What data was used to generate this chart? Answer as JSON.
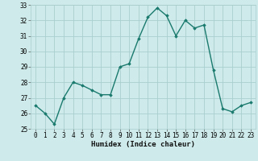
{
  "x": [
    0,
    1,
    2,
    3,
    4,
    5,
    6,
    7,
    8,
    9,
    10,
    11,
    12,
    13,
    14,
    15,
    16,
    17,
    18,
    19,
    20,
    21,
    22,
    23
  ],
  "y": [
    26.5,
    26.0,
    25.3,
    27.0,
    28.0,
    27.8,
    27.5,
    27.2,
    27.2,
    29.0,
    29.2,
    30.8,
    32.2,
    32.8,
    32.3,
    31.0,
    32.0,
    31.5,
    31.7,
    28.8,
    26.3,
    26.1,
    26.5,
    26.7
  ],
  "line_color": "#1a7a6e",
  "marker": "D",
  "markersize": 1.8,
  "linewidth": 1.0,
  "bg_color": "#ceeaea",
  "grid_color": "#aacece",
  "xlabel": "Humidex (Indice chaleur)",
  "ylim": [
    25,
    33
  ],
  "xlim": [
    -0.5,
    23.5
  ],
  "yticks": [
    25,
    26,
    27,
    28,
    29,
    30,
    31,
    32,
    33
  ],
  "xticks": [
    0,
    1,
    2,
    3,
    4,
    5,
    6,
    7,
    8,
    9,
    10,
    11,
    12,
    13,
    14,
    15,
    16,
    17,
    18,
    19,
    20,
    21,
    22,
    23
  ],
  "tick_fontsize": 5.5,
  "xlabel_fontsize": 6.5
}
